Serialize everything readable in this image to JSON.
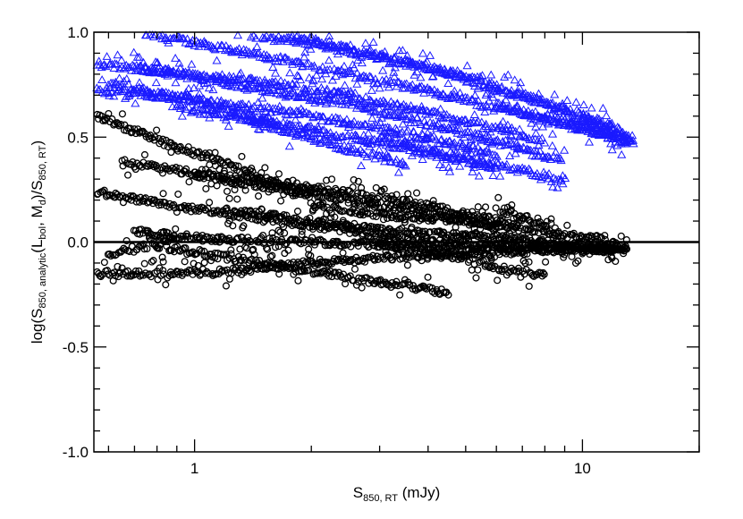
{
  "chart_data": {
    "type": "scatter",
    "title": "",
    "x_scale": "log",
    "xlim": [
      0.55,
      20
    ],
    "ylim": [
      -1.0,
      1.0
    ],
    "x_ticks": [
      {
        "value": 1,
        "label": "1"
      },
      {
        "value": 10,
        "label": "10"
      }
    ],
    "y_ticks": [
      {
        "value": 1.0,
        "label": "1.0"
      },
      {
        "value": 0.5,
        "label": "0.5"
      },
      {
        "value": 0.0,
        "label": "0.0"
      },
      {
        "value": -0.5,
        "label": "-0.5"
      },
      {
        "value": -1.0,
        "label": "-1.0"
      }
    ],
    "xlabel": {
      "main": "S",
      "sub": "850, RT",
      "tail": " (mJy)"
    },
    "ylabel": {
      "parts": [
        {
          "t": "log(S",
          "sub": false
        },
        {
          "t": "850, analytic",
          "sub": true
        },
        {
          "t": "(L",
          "sub": false
        },
        {
          "t": "bol",
          "sub": true
        },
        {
          "t": ", M",
          "sub": false
        },
        {
          "t": "d",
          "sub": true
        },
        {
          "t": ")/S",
          "sub": false
        },
        {
          "t": "850, RT",
          "sub": true
        },
        {
          "t": ")",
          "sub": false
        }
      ]
    },
    "reference_line": {
      "y": 0.0
    },
    "colors": {
      "triangle_series": "#1a1aff",
      "circle_series": "#000000"
    },
    "series": [
      {
        "marker": "triangle",
        "color": "#1a1aff",
        "tracks": [
          {
            "x": [
              0.72,
              1.0,
              2.0,
              4.0,
              8.0,
              12.0
            ],
            "y": [
              1.0,
              0.95,
              0.84,
              0.72,
              0.58,
              0.5
            ]
          },
          {
            "x": [
              1.25,
              2.0,
              4.0,
              8.0,
              13.0
            ],
            "y": [
              1.0,
              0.95,
              0.83,
              0.66,
              0.48
            ]
          },
          {
            "x": [
              1.65,
              2.5,
              5.0,
              10.0,
              13.5
            ],
            "y": [
              1.0,
              0.92,
              0.79,
              0.6,
              0.47
            ]
          },
          {
            "x": [
              0.55,
              1.0,
              2.0,
              4.0,
              8.0
            ],
            "y": [
              0.85,
              0.8,
              0.73,
              0.62,
              0.48
            ]
          },
          {
            "x": [
              0.55,
              1.0,
              2.0,
              3.5,
              6.0
            ],
            "y": [
              0.73,
              0.68,
              0.6,
              0.52,
              0.42
            ]
          },
          {
            "x": [
              0.7,
              1.2,
              2.5,
              5.0,
              9.0
            ],
            "y": [
              0.83,
              0.76,
              0.66,
              0.52,
              0.38
            ]
          },
          {
            "x": [
              0.9,
              1.5,
              3.0,
              6.0
            ],
            "y": [
              0.64,
              0.58,
              0.47,
              0.36
            ]
          },
          {
            "x": [
              6.0,
              8.0,
              11.0,
              13.0
            ],
            "y": [
              0.65,
              0.6,
              0.52,
              0.47
            ]
          },
          {
            "x": [
              10.0,
              12.0,
              13.5
            ],
            "y": [
              0.6,
              0.55,
              0.48
            ]
          },
          {
            "x": [
              3.0,
              4.5,
              7.0,
              9.0
            ],
            "y": [
              0.5,
              0.42,
              0.34,
              0.3
            ]
          },
          {
            "x": [
              1.4,
              2.2,
              3.5
            ],
            "y": [
              0.58,
              0.47,
              0.37
            ]
          },
          {
            "x": [
              0.6,
              1.0,
              1.6
            ],
            "y": [
              0.76,
              0.67,
              0.56
            ]
          }
        ]
      },
      {
        "marker": "circle",
        "color": "#000000",
        "tracks": [
          {
            "x": [
              0.55,
              0.7,
              0.9,
              1.2,
              1.5,
              2.0
            ],
            "y": [
              0.6,
              0.53,
              0.45,
              0.38,
              0.3,
              0.22
            ]
          },
          {
            "x": [
              0.65,
              1.0,
              2.0,
              4.0,
              7.0
            ],
            "y": [
              0.38,
              0.33,
              0.26,
              0.17,
              0.08
            ]
          },
          {
            "x": [
              0.55,
              1.0,
              2.0,
              4.0,
              8.0,
              13.0
            ],
            "y": [
              0.24,
              0.16,
              0.08,
              0.0,
              -0.03,
              -0.04
            ]
          },
          {
            "x": [
              0.55,
              0.8,
              1.2,
              2.0,
              4.0,
              8.0,
              13.0
            ],
            "y": [
              -0.15,
              -0.15,
              -0.14,
              -0.1,
              -0.06,
              -0.04,
              -0.03
            ]
          },
          {
            "x": [
              0.7,
              1.0,
              2.0,
              4.0,
              8.0,
              13.0
            ],
            "y": [
              0.05,
              0.02,
              0.0,
              -0.02,
              -0.03,
              -0.03
            ]
          },
          {
            "x": [
              1.2,
              2.0,
              3.5,
              6.0,
              9.0,
              12.0
            ],
            "y": [
              0.15,
              0.1,
              0.05,
              0.02,
              -0.01,
              -0.03
            ]
          },
          {
            "x": [
              0.8,
              1.0,
              1.5,
              2.0,
              3.0,
              4.5
            ],
            "y": [
              -0.02,
              -0.05,
              -0.1,
              -0.14,
              -0.19,
              -0.24
            ]
          },
          {
            "x": [
              1.0,
              1.5,
              2.5,
              4.0,
              6.0
            ],
            "y": [
              0.32,
              0.27,
              0.2,
              0.14,
              0.08
            ]
          },
          {
            "x": [
              2.0,
              3.0,
              5.0,
              8.0,
              12.0
            ],
            "y": [
              0.18,
              0.13,
              0.1,
              0.05,
              0.0
            ]
          },
          {
            "x": [
              3.0,
              4.0,
              5.0,
              6.0,
              8.0
            ],
            "y": [
              0.0,
              -0.04,
              -0.08,
              -0.12,
              -0.16
            ]
          },
          {
            "x": [
              6.0,
              7.0,
              8.0,
              9.0
            ],
            "y": [
              0.15,
              0.12,
              0.08,
              -0.05
            ]
          },
          {
            "x": [
              0.6,
              0.75,
              0.9
            ],
            "y": [
              -0.06,
              -0.02,
              0.02
            ]
          }
        ]
      }
    ]
  }
}
